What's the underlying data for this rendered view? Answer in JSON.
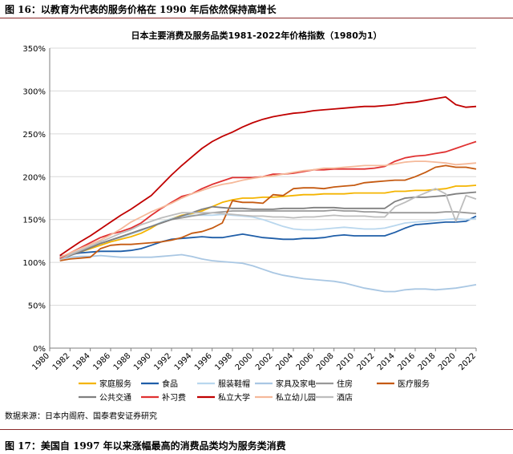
{
  "figure_header": "图 16：以教育为代表的服务价格在 1990 年后依然保持高增长",
  "source_note": "数据来源：日本内阁府、国泰君安证券研究",
  "next_figure_header": "图 17：美国自 1997 年以来涨幅最高的消费品类均为服务类消费",
  "chart_data": {
    "type": "line",
    "title": "日本主要消费及服务品类1981-2022年价格指数（1980为1）",
    "xlabel": "",
    "ylabel": "",
    "ylim": [
      0,
      350
    ],
    "y_ticks": [
      "0%",
      "50%",
      "100%",
      "150%",
      "200%",
      "250%",
      "300%",
      "350%"
    ],
    "x_ticks": [
      "1980",
      "1982",
      "1984",
      "1986",
      "1988",
      "1990",
      "1992",
      "1994",
      "1996",
      "1998",
      "2000",
      "2002",
      "2004",
      "2006",
      "2008",
      "2010",
      "2012",
      "2014",
      "2016",
      "2018",
      "2020",
      "2022"
    ],
    "grid": true,
    "legend_position": "bottom",
    "x": [
      1981,
      1982,
      1983,
      1984,
      1985,
      1986,
      1987,
      1988,
      1989,
      1990,
      1991,
      1992,
      1993,
      1994,
      1995,
      1996,
      1997,
      1998,
      1999,
      2000,
      2001,
      2002,
      2003,
      2004,
      2005,
      2006,
      2007,
      2008,
      2009,
      2010,
      2011,
      2012,
      2013,
      2014,
      2015,
      2016,
      2017,
      2018,
      2019,
      2020,
      2021,
      2022
    ],
    "series": [
      {
        "name": "家庭服务",
        "color": "#f4b400",
        "values": [
          106,
          109,
          112,
          116,
          120,
          124,
          127,
          130,
          134,
          140,
          147,
          151,
          155,
          157,
          160,
          165,
          170,
          173,
          175,
          175,
          176,
          176,
          177,
          178,
          179,
          179,
          180,
          180,
          180,
          181,
          181,
          181,
          181,
          183,
          183,
          184,
          184,
          185,
          186,
          189,
          189,
          190
        ]
      },
      {
        "name": "食品",
        "color": "#1f5ea8",
        "values": [
          107,
          109,
          111,
          112,
          113,
          113,
          113,
          114,
          116,
          120,
          124,
          127,
          128,
          129,
          130,
          129,
          129,
          131,
          133,
          131,
          129,
          128,
          127,
          127,
          128,
          128,
          129,
          131,
          132,
          131,
          131,
          131,
          131,
          135,
          140,
          144,
          145,
          146,
          147,
          147,
          148,
          154
        ]
      },
      {
        "name": "服装鞋帽",
        "color": "#b9d7ee",
        "values": [
          106,
          110,
          114,
          118,
          122,
          126,
          129,
          133,
          137,
          142,
          147,
          151,
          154,
          155,
          155,
          155,
          156,
          155,
          154,
          153,
          150,
          146,
          142,
          139,
          138,
          138,
          139,
          140,
          141,
          140,
          139,
          139,
          140,
          143,
          146,
          147,
          148,
          149,
          150,
          151,
          150,
          151
        ]
      },
      {
        "name": "家具及家电",
        "color": "#a9c7e3",
        "values": [
          104,
          106,
          107,
          107,
          108,
          107,
          106,
          106,
          106,
          106,
          107,
          108,
          109,
          107,
          104,
          102,
          101,
          100,
          99,
          96,
          92,
          88,
          85,
          83,
          81,
          80,
          79,
          78,
          76,
          73,
          70,
          68,
          66,
          66,
          68,
          69,
          69,
          68,
          69,
          70,
          72,
          74
        ]
      },
      {
        "name": "住房",
        "color": "#999999",
        "values": [
          104,
          108,
          113,
          118,
          122,
          126,
          130,
          134,
          138,
          142,
          146,
          150,
          152,
          154,
          156,
          158,
          159,
          160,
          160,
          160,
          160,
          160,
          160,
          160,
          160,
          160,
          160,
          161,
          160,
          160,
          159,
          159,
          158,
          158,
          158,
          158,
          158,
          158,
          159,
          159,
          158,
          157
        ]
      },
      {
        "name": "医疗服务",
        "color": "#c55a11",
        "values": [
          102,
          104,
          105,
          106,
          116,
          120,
          121,
          121,
          122,
          123,
          124,
          126,
          129,
          134,
          136,
          140,
          146,
          172,
          170,
          170,
          169,
          179,
          178,
          186,
          187,
          187,
          186,
          188,
          189,
          190,
          193,
          194,
          195,
          196,
          196,
          200,
          205,
          211,
          213,
          211,
          211,
          209
        ]
      },
      {
        "name": "公共交通",
        "color": "#808080",
        "values": [
          104,
          108,
          112,
          117,
          122,
          126,
          130,
          134,
          138,
          142,
          146,
          150,
          154,
          158,
          162,
          165,
          164,
          163,
          163,
          162,
          162,
          162,
          163,
          163,
          163,
          164,
          164,
          164,
          163,
          163,
          163,
          163,
          163,
          171,
          175,
          176,
          176,
          177,
          178,
          180,
          181,
          182
        ]
      },
      {
        "name": "补习费",
        "color": "#e03131",
        "values": [
          105,
          111,
          117,
          123,
          129,
          133,
          136,
          140,
          146,
          155,
          163,
          170,
          177,
          180,
          186,
          191,
          195,
          199,
          199,
          199,
          200,
          203,
          203,
          204,
          206,
          208,
          208,
          209,
          209,
          209,
          209,
          210,
          212,
          218,
          222,
          224,
          225,
          227,
          229,
          233,
          237,
          241
        ]
      },
      {
        "name": "私立大学",
        "color": "#c00000",
        "values": [
          108,
          116,
          124,
          131,
          139,
          147,
          155,
          162,
          170,
          178,
          190,
          202,
          213,
          223,
          233,
          241,
          247,
          252,
          258,
          263,
          267,
          270,
          272,
          274,
          275,
          277,
          278,
          279,
          280,
          281,
          282,
          282,
          283,
          284,
          286,
          287,
          289,
          291,
          293,
          284,
          281,
          282
        ]
      },
      {
        "name": "私立幼儿园",
        "color": "#f5b99a",
        "values": [
          106,
          111,
          116,
          121,
          126,
          132,
          139,
          147,
          153,
          159,
          164,
          169,
          175,
          180,
          184,
          188,
          191,
          193,
          196,
          198,
          200,
          201,
          203,
          205,
          207,
          208,
          210,
          210,
          211,
          212,
          213,
          213,
          213,
          215,
          217,
          218,
          218,
          217,
          216,
          214,
          215,
          216
        ]
      },
      {
        "name": "酒店",
        "color": "#bdbdbd",
        "values": [
          103,
          109,
          114,
          119,
          124,
          129,
          134,
          138,
          144,
          148,
          152,
          155,
          158,
          158,
          158,
          158,
          157,
          156,
          155,
          154,
          154,
          153,
          153,
          152,
          153,
          153,
          154,
          155,
          154,
          154,
          154,
          153,
          153,
          165,
          170,
          176,
          181,
          186,
          180,
          148,
          178,
          174
        ]
      }
    ]
  }
}
